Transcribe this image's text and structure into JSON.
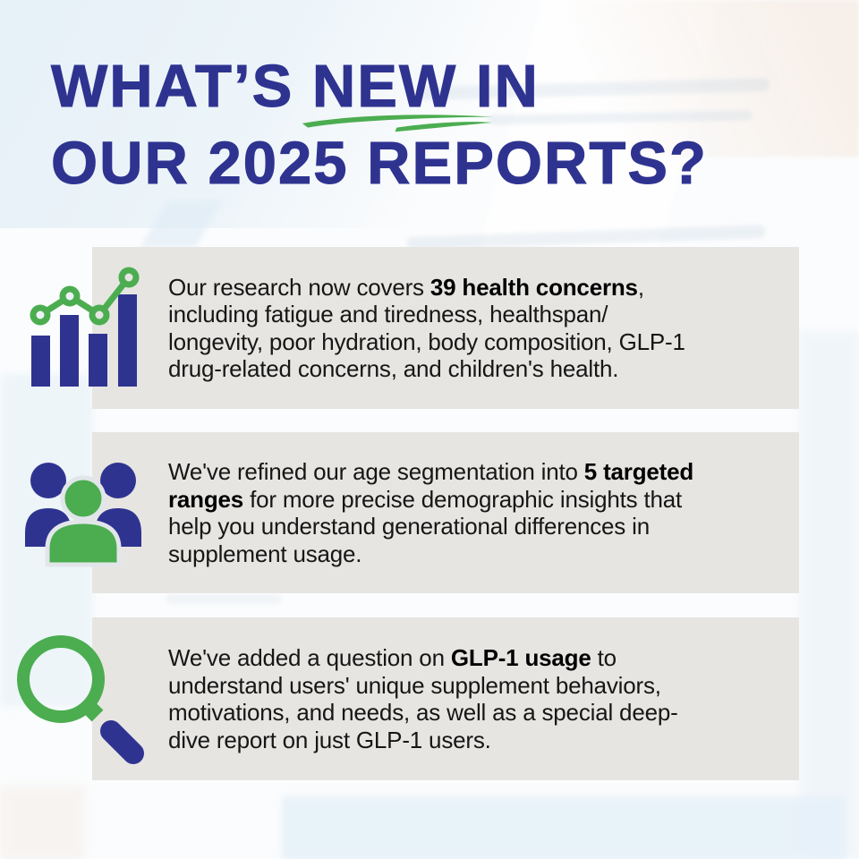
{
  "colors": {
    "navy": "#2F3390",
    "green": "#4BAD50",
    "card_bg": "#E6E5E2",
    "text_dark": "#161616",
    "bg_blue_tint": "#E7F1F8",
    "bg_warm_tint": "#F7EFE9"
  },
  "title": {
    "part1": "WHAT’S",
    "highlight": "NEW",
    "part3": "IN",
    "line2": "OUR 2025 REPORTS?"
  },
  "cards": [
    {
      "icon": "bar-chart-trend-icon",
      "lines": [
        [
          {
            "t": "Our research now covers ",
            "b": 0
          },
          {
            "t": "39 health concerns",
            "b": 1
          },
          {
            "t": ",",
            "b": 0
          }
        ],
        [
          {
            "t": "including fatigue and tiredness, healthspan/",
            "b": 0
          }
        ],
        [
          {
            "t": "longevity, poor hydration, body composition, GLP-1",
            "b": 0
          }
        ],
        [
          {
            "t": "drug-related concerns, and children's health.",
            "b": 0
          }
        ]
      ]
    },
    {
      "icon": "people-group-icon",
      "lines": [
        [
          {
            "t": "We've refined our age segmentation into ",
            "b": 0
          },
          {
            "t": "5 targeted",
            "b": 1
          }
        ],
        [
          {
            "t": "ranges",
            "b": 1
          },
          {
            "t": " for more precise demographic insights that",
            "b": 0
          }
        ],
        [
          {
            "t": "help you understand generational differences in",
            "b": 0
          }
        ],
        [
          {
            "t": "supplement usage.",
            "b": 0
          }
        ]
      ]
    },
    {
      "icon": "magnifying-glass-icon",
      "lines": [
        [
          {
            "t": "We've added a question on ",
            "b": 0
          },
          {
            "t": "GLP-1 usage",
            "b": 1
          },
          {
            "t": " to",
            "b": 0
          }
        ],
        [
          {
            "t": "understand users' unique supplement behaviors,",
            "b": 0
          }
        ],
        [
          {
            "t": "motivations, and needs, as well as a special deep-",
            "b": 0
          }
        ],
        [
          {
            "t": "dive report on just GLP-1 users.",
            "b": 0
          }
        ]
      ]
    }
  ]
}
